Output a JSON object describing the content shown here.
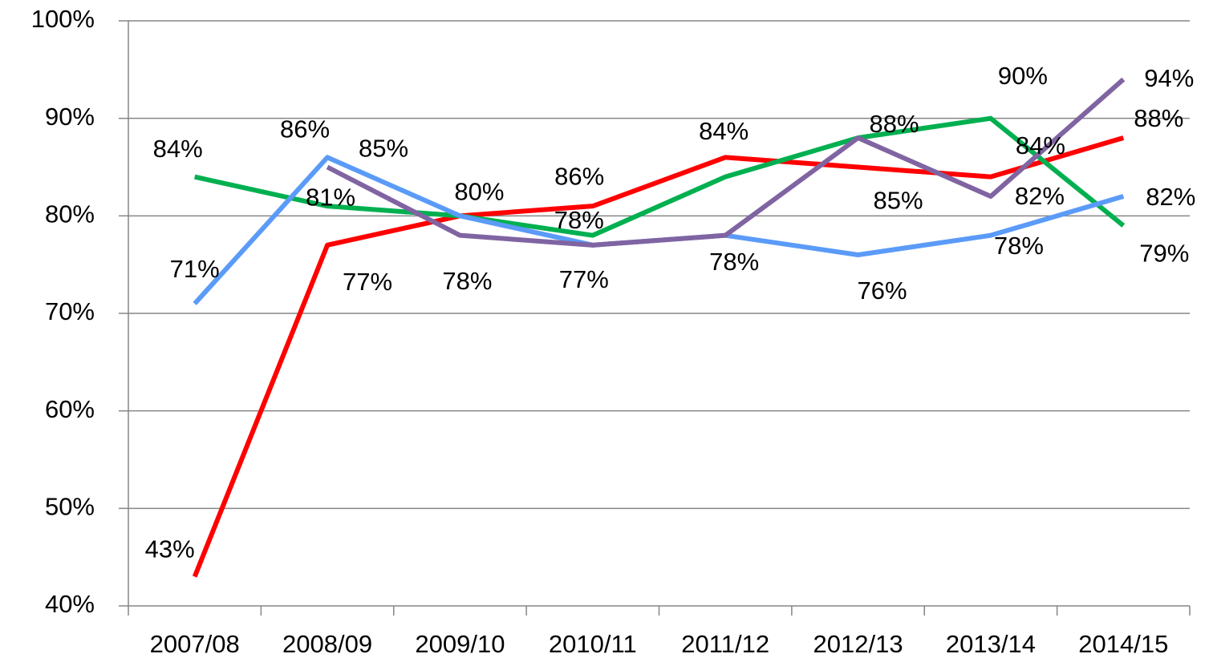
{
  "chart_data": {
    "type": "line",
    "categories": [
      "2007/08",
      "2008/09",
      "2009/10",
      "2010/11",
      "2011/12",
      "2012/13",
      "2013/14",
      "2014/15"
    ],
    "series": [
      {
        "color": "#ff0000",
        "values": [
          43,
          77,
          80,
          81,
          86,
          85,
          84,
          88
        ],
        "value_labels": [
          "43%",
          "77%",
          null,
          null,
          "86%",
          "85%",
          "84%",
          "88%"
        ]
      },
      {
        "color": "#00b050",
        "values": [
          84,
          81,
          80,
          78,
          84,
          88,
          90,
          79
        ],
        "value_labels": [
          "84%",
          "81%",
          "80%",
          "78%",
          "84%",
          "88%",
          "90%",
          "79%"
        ]
      },
      {
        "color": "#5b9bf8",
        "values": [
          71,
          86,
          80,
          77,
          78,
          76,
          78,
          82
        ],
        "value_labels": [
          "71%",
          "86%",
          null,
          "77%",
          "78%",
          "76%",
          "78%",
          "82%"
        ]
      },
      {
        "color": "#8064a2",
        "values": [
          null,
          85,
          78,
          77,
          78,
          88,
          82,
          94
        ],
        "value_labels": [
          null,
          "85%",
          "78%",
          null,
          null,
          null,
          "82%",
          "94%"
        ]
      }
    ],
    "ylim": [
      40,
      100
    ],
    "yticks": [
      {
        "value": 40,
        "label": "40%"
      },
      {
        "value": 50,
        "label": "50%"
      },
      {
        "value": 60,
        "label": "60%"
      },
      {
        "value": 70,
        "label": "70%"
      },
      {
        "value": 80,
        "label": "80%"
      },
      {
        "value": 90,
        "label": "90%"
      },
      {
        "value": 100,
        "label": "100%"
      }
    ],
    "grid": true
  }
}
